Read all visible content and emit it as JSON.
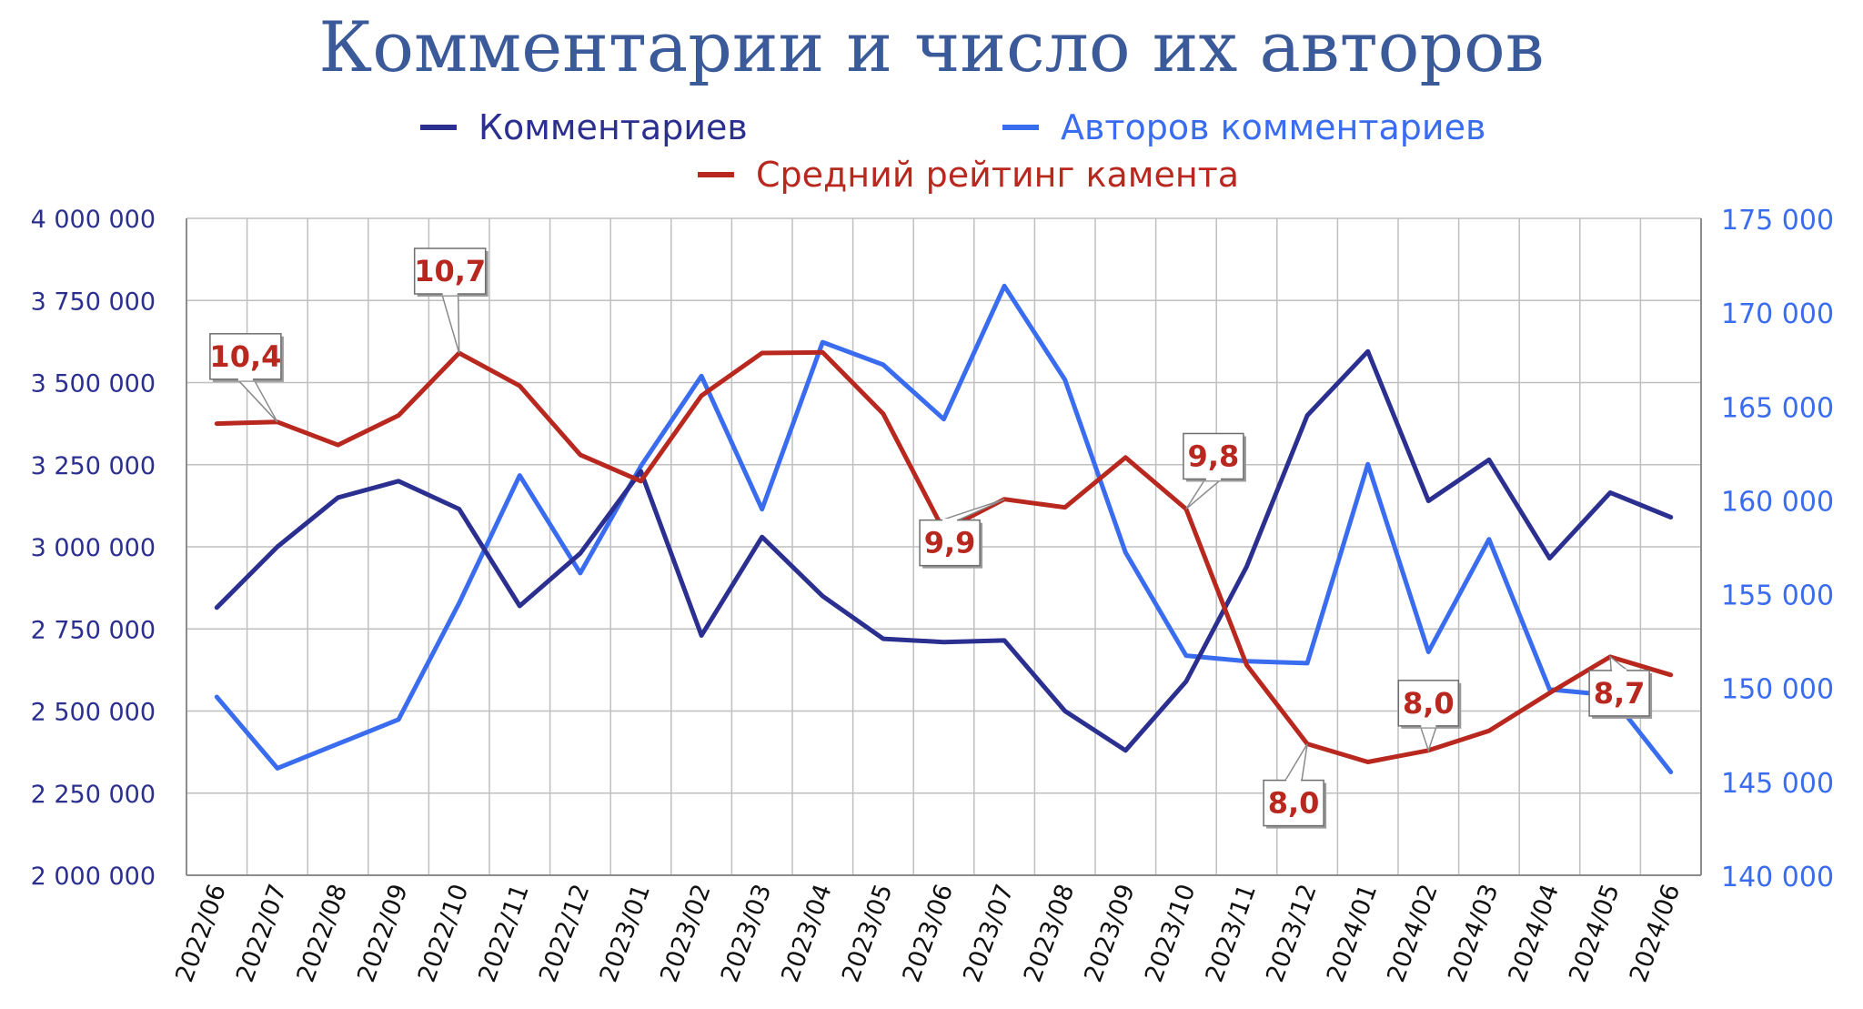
{
  "chart_data": {
    "type": "line",
    "title": "Комментарии и число их авторов",
    "categories": [
      "2022/06",
      "2022/07",
      "2022/08",
      "2022/09",
      "2022/10",
      "2022/11",
      "2022/12",
      "2023/01",
      "2023/02",
      "2023/03",
      "2023/04",
      "2023/05",
      "2023/06",
      "2023/07",
      "2023/08",
      "2023/09",
      "2023/10",
      "2023/11",
      "2023/12",
      "2024/01",
      "2024/02",
      "2024/03",
      "2024/04",
      "2024/05",
      "2024/06"
    ],
    "y_left": {
      "range": [
        2000000,
        4000000
      ],
      "ticks": [
        2000000,
        2250000,
        2500000,
        2750000,
        3000000,
        3250000,
        3500000,
        3750000,
        4000000
      ],
      "tick_labels": [
        "2 000 000",
        "2 250 000",
        "2 500 000",
        "2 750 000",
        "3 000 000",
        "3 250 000",
        "3 500 000",
        "3 750 000",
        "4 000 000"
      ],
      "color": "#2b2f8f"
    },
    "y_right": {
      "range": [
        140000,
        175000
      ],
      "ticks": [
        140000,
        145000,
        150000,
        155000,
        160000,
        165000,
        170000,
        175000
      ],
      "tick_labels": [
        "140 000",
        "145 000",
        "150 000",
        "155 000",
        "160 000",
        "165 000",
        "170 000",
        "175 000"
      ],
      "color": "#3a6cf0"
    },
    "grid": true,
    "legend_placement": "top",
    "series": [
      {
        "name": "Комментариев",
        "axis": "left",
        "color": "#2b2f8f",
        "values": [
          2815000,
          3000000,
          3150000,
          3200000,
          3115000,
          2820000,
          2980000,
          3230000,
          2730000,
          3030000,
          2850000,
          2720000,
          2710000,
          2715000,
          2500000,
          2380000,
          2590000,
          2940000,
          3400000,
          3595000,
          3140000,
          3265000,
          2965000,
          3165000,
          3090000
        ]
      },
      {
        "name": "Авторов комментариев",
        "axis": "right",
        "color": "#3a6cf0",
        "values": [
          149500,
          145700,
          147000,
          148300,
          154500,
          161300,
          156100,
          161800,
          166600,
          159500,
          168400,
          167200,
          164300,
          171400,
          166400,
          157200,
          151700,
          151400,
          151300,
          161900,
          151900,
          157900,
          149900,
          149600,
          145500
        ]
      },
      {
        "name": "Средний рейтинг камента",
        "axis": "left",
        "color": "#b8281f",
        "values": [
          3375000,
          3380000,
          3310000,
          3400000,
          3590000,
          3490000,
          3280000,
          3200000,
          3460000,
          3590000,
          3592000,
          3405000,
          3050000,
          3145000,
          3120000,
          3272000,
          3115000,
          2640000,
          2400000,
          2345000,
          2380000,
          2440000,
          2555000,
          2665000,
          2610000
        ]
      }
    ],
    "annotations": [
      {
        "label": "10,4",
        "index": 1,
        "series": 2
      },
      {
        "label": "10,7",
        "index": 4,
        "series": 2
      },
      {
        "label": "9,9",
        "index": 13,
        "series": 2
      },
      {
        "label": "9,8",
        "index": 16,
        "series": 2
      },
      {
        "label": "8,0",
        "index": 18,
        "series": 2
      },
      {
        "label": "8,0",
        "index": 20,
        "series": 2
      },
      {
        "label": "8,7",
        "index": 23,
        "series": 2
      }
    ]
  },
  "colors": {
    "title": "#3b5a9a",
    "callout_text": "#b8281f",
    "grid": "#bfbfbf",
    "axis": "#8c8c8c"
  }
}
